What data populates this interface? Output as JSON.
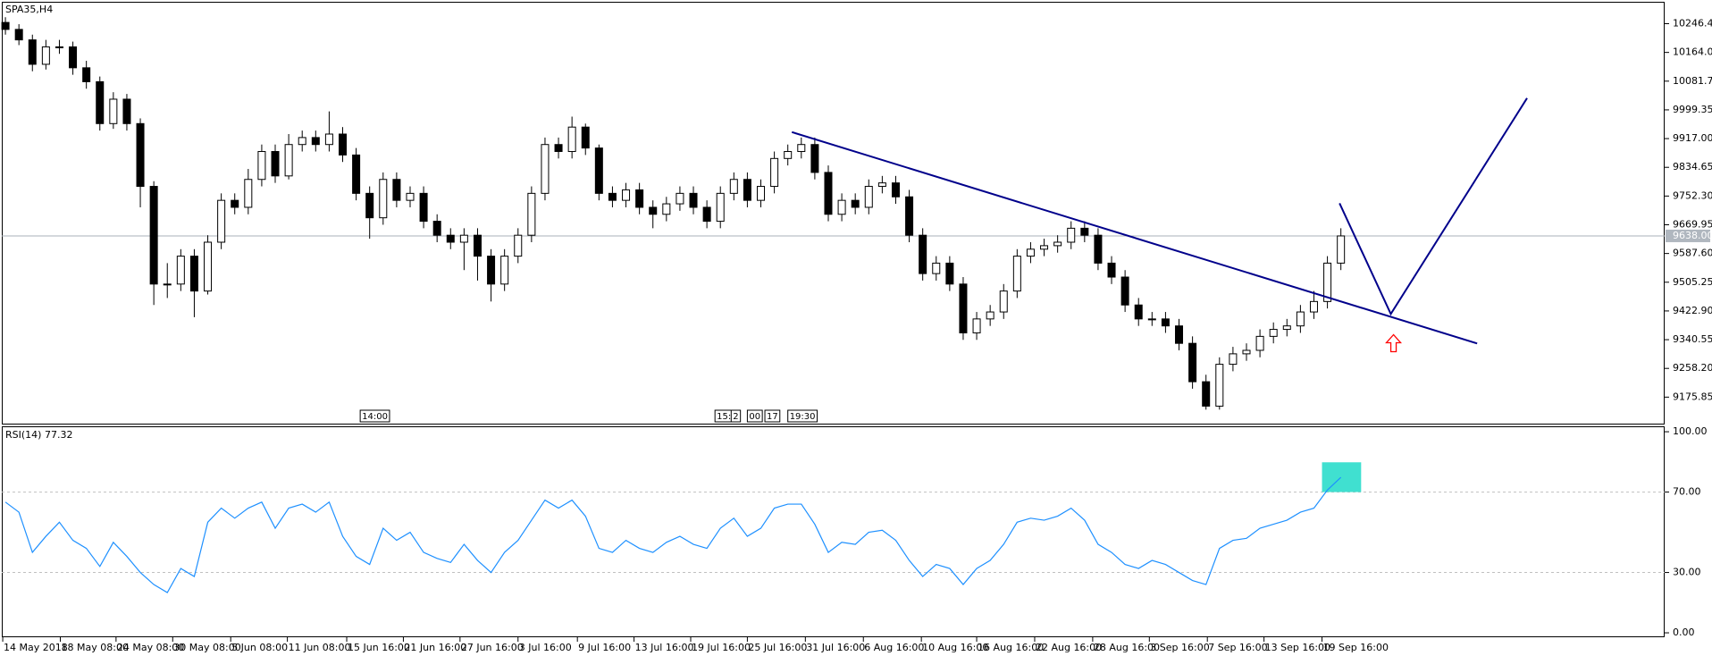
{
  "chart_data": [
    {
      "type": "candlestick",
      "title": "SPA35,H4",
      "xlim": [
        -0.27,
        123
      ],
      "ylim": [
        9097.3,
        10309.2
      ],
      "xticks": [
        {
          "value": -0.2,
          "label": "14 May 2018"
        },
        {
          "value": 4.07,
          "label": "18 May 08:00"
        },
        {
          "value": 8.2,
          "label": "24 May 08:00"
        },
        {
          "value": 12.4,
          "label": "30 May 08:00"
        },
        {
          "value": 16.7,
          "label": "5 Jun 08:00"
        },
        {
          "value": 20.9,
          "label": "11 Jun 08:00"
        },
        {
          "value": 25.3,
          "label": "15 Jun 16:00"
        },
        {
          "value": 29.5,
          "label": "21 Jun 16:00"
        },
        {
          "value": 33.7,
          "label": "27 Jun 16:00"
        },
        {
          "value": 38,
          "label": "3 Jul 16:00"
        },
        {
          "value": 42.4,
          "label": "9 Jul 16:00"
        },
        {
          "value": 46.6,
          "label": "13 Jul 16:00"
        },
        {
          "value": 50.8,
          "label": "19 Jul 16:00"
        },
        {
          "value": 55,
          "label": "25 Jul 16:00"
        },
        {
          "value": 59.3,
          "label": "31 Jul 16:00"
        },
        {
          "value": 63.6,
          "label": "6 Aug 16:00"
        },
        {
          "value": 67.9,
          "label": "10 Aug 16:00"
        },
        {
          "value": 72,
          "label": "16 Aug 16:00"
        },
        {
          "value": 76.3,
          "label": "22 Aug 16:00"
        },
        {
          "value": 80.6,
          "label": "28 Aug 16:00"
        },
        {
          "value": 84.8,
          "label": "3 Sep 16:00"
        },
        {
          "value": 89.1,
          "label": "7 Sep 16:00"
        },
        {
          "value": 93.3,
          "label": "13 Sep 16:00"
        },
        {
          "value": 97.6,
          "label": "19 Sep 16:00"
        }
      ],
      "yticks": [
        {
          "value": 10246.4,
          "label": "10246.40"
        },
        {
          "value": 10164.05,
          "label": "10164.05"
        },
        {
          "value": 10081.7,
          "label": "10081.70"
        },
        {
          "value": 9999.35,
          "label": "9999.35"
        },
        {
          "value": 9917,
          "label": "9917.00"
        },
        {
          "value": 9834.65,
          "label": "9834.65"
        },
        {
          "value": 9752.3,
          "label": "9752.30"
        },
        {
          "value": 9669.95,
          "label": "9669.95"
        },
        {
          "value": 9587.6,
          "label": "9587.60"
        },
        {
          "value": 9505.25,
          "label": "9505.25"
        },
        {
          "value": 9422.9,
          "label": "9422.90"
        },
        {
          "value": 9340.55,
          "label": "9340.55"
        },
        {
          "value": 9258.2,
          "label": "9258.20"
        },
        {
          "value": 9175.85,
          "label": "9175.85"
        }
      ],
      "last_price": {
        "value": 9638,
        "label": "9638.00"
      },
      "up_color": "#ffffff",
      "down_color": "#000000",
      "outline_color": "#000000",
      "open": [
        10250,
        10230,
        10200,
        10130,
        10180,
        10180,
        10120,
        10080,
        9960,
        10030,
        9960,
        9780,
        9500,
        9500,
        9580,
        9480,
        9620,
        9740,
        9720,
        9800,
        9880,
        9810,
        9900,
        9920,
        9900,
        9930,
        9870,
        9760,
        9690,
        9800,
        9740,
        9760,
        9680,
        9640,
        9620,
        9640,
        9580,
        9500,
        9580,
        9640,
        9760,
        9900,
        9880,
        9950,
        9890,
        9760,
        9740,
        9770,
        9720,
        9700,
        9730,
        9760,
        9720,
        9680,
        9760,
        9800,
        9740,
        9780,
        9860,
        9880,
        9900,
        9820,
        9700,
        9740,
        9720,
        9780,
        9790,
        9750,
        9640,
        9530,
        9560,
        9500,
        9360,
        9400,
        9420,
        9480,
        9580,
        9600,
        9610,
        9620,
        9660,
        9640,
        9560,
        9520,
        9440,
        9400,
        9400,
        9380,
        9330,
        9220,
        9150,
        9270,
        9300,
        9310,
        9350,
        9370,
        9380,
        9420,
        9450,
        9560
      ],
      "high": [
        10265,
        10245,
        10215,
        10200,
        10200,
        10195,
        10140,
        10095,
        10050,
        10045,
        9975,
        9795,
        9560,
        9600,
        9600,
        9640,
        9760,
        9760,
        9830,
        9900,
        9900,
        9930,
        9940,
        9940,
        9995,
        9950,
        9890,
        9780,
        9820,
        9820,
        9780,
        9780,
        9700,
        9660,
        9660,
        9660,
        9600,
        9600,
        9660,
        9780,
        9920,
        9920,
        9980,
        9960,
        9900,
        9780,
        9790,
        9790,
        9740,
        9750,
        9780,
        9780,
        9740,
        9780,
        9820,
        9820,
        9800,
        9880,
        9900,
        9920,
        9920,
        9840,
        9760,
        9760,
        9800,
        9810,
        9810,
        9770,
        9660,
        9580,
        9580,
        9520,
        9420,
        9440,
        9500,
        9600,
        9620,
        9630,
        9640,
        9680,
        9680,
        9660,
        9580,
        9540,
        9460,
        9420,
        9420,
        9400,
        9350,
        9240,
        9290,
        9320,
        9330,
        9370,
        9390,
        9400,
        9440,
        9480,
        9580,
        9660
      ],
      "low": [
        10215,
        10185,
        10110,
        10115,
        10160,
        10100,
        10060,
        9940,
        9945,
        9940,
        9720,
        9440,
        9460,
        9480,
        9405,
        9470,
        9600,
        9700,
        9700,
        9780,
        9790,
        9800,
        9880,
        9880,
        9880,
        9850,
        9740,
        9630,
        9670,
        9720,
        9720,
        9660,
        9620,
        9600,
        9540,
        9510,
        9450,
        9480,
        9560,
        9620,
        9740,
        9860,
        9860,
        9870,
        9740,
        9720,
        9720,
        9700,
        9660,
        9680,
        9710,
        9700,
        9660,
        9660,
        9740,
        9720,
        9720,
        9760,
        9840,
        9860,
        9800,
        9680,
        9680,
        9700,
        9700,
        9760,
        9730,
        9620,
        9510,
        9510,
        9480,
        9340,
        9340,
        9380,
        9400,
        9460,
        9560,
        9580,
        9590,
        9600,
        9620,
        9540,
        9500,
        9420,
        9380,
        9380,
        9360,
        9310,
        9200,
        9140,
        9140,
        9250,
        9280,
        9290,
        9330,
        9350,
        9360,
        9400,
        9430,
        9540
      ],
      "close": [
        10230,
        10200,
        10130,
        10180,
        10180,
        10120,
        10080,
        9960,
        10030,
        9960,
        9780,
        9500,
        9500,
        9580,
        9480,
        9620,
        9740,
        9720,
        9800,
        9880,
        9810,
        9900,
        9920,
        9900,
        9930,
        9870,
        9760,
        9690,
        9800,
        9740,
        9760,
        9680,
        9640,
        9620,
        9640,
        9580,
        9500,
        9580,
        9640,
        9760,
        9900,
        9880,
        9950,
        9890,
        9760,
        9740,
        9770,
        9720,
        9700,
        9730,
        9760,
        9720,
        9680,
        9760,
        9800,
        9740,
        9780,
        9860,
        9880,
        9900,
        9820,
        9700,
        9740,
        9720,
        9780,
        9790,
        9750,
        9640,
        9530,
        9560,
        9500,
        9360,
        9400,
        9420,
        9480,
        9580,
        9600,
        9610,
        9620,
        9660,
        9640,
        9560,
        9520,
        9440,
        9400,
        9400,
        9380,
        9330,
        9220,
        9150,
        9270,
        9300,
        9310,
        9350,
        9370,
        9380,
        9420,
        9450,
        9560,
        9638
      ],
      "time_markers": [
        {
          "x": 26.3,
          "label": "14:00"
        },
        {
          "x": 52.6,
          "label": "15:"
        },
        {
          "x": 53.8,
          "label": "2"
        },
        {
          "x": 55,
          "label": "00"
        },
        {
          "x": 56.3,
          "label": "17"
        },
        {
          "x": 58,
          "label": "19:30"
        }
      ],
      "trendline": {
        "color": "#00008b",
        "x": [
          58.3,
          109.1
        ],
        "y": [
          9935.6,
          9329.7
        ]
      },
      "projection": {
        "color": "#00008b",
        "x": [
          98.9,
          102.7,
          112.8
        ],
        "y": [
          9731.5,
          9414.4,
          10032.9
        ]
      },
      "arrow": {
        "color": "#ff0000",
        "x": 102.9,
        "y": 9354.8
      }
    },
    {
      "type": "line",
      "title": "RSI(14) 77.32",
      "xlim": [
        -0.27,
        123
      ],
      "ylim": [
        -2.2,
        102.7
      ],
      "yticks": [
        {
          "value": 100,
          "label": "100.00"
        },
        {
          "value": 70,
          "label": "70.00"
        },
        {
          "value": 30,
          "label": "30.00"
        },
        {
          "value": 0,
          "label": "0.00"
        }
      ],
      "levels": [
        70,
        30
      ],
      "color": "#1e90ff",
      "values": [
        65,
        60,
        40,
        48,
        55,
        46,
        42,
        33,
        45,
        38,
        30,
        24,
        20,
        32,
        28,
        55,
        62,
        57,
        62,
        65,
        52,
        62,
        64,
        60,
        65,
        48,
        38,
        34,
        52,
        46,
        50,
        40,
        37,
        35,
        44,
        36,
        30,
        40,
        46,
        56,
        66,
        62,
        66,
        58,
        42,
        40,
        46,
        42,
        40,
        45,
        48,
        44,
        42,
        52,
        57,
        48,
        52,
        62,
        64,
        64,
        54,
        40,
        45,
        44,
        50,
        51,
        46,
        36,
        28,
        34,
        32,
        24,
        32,
        36,
        44,
        55,
        57,
        56,
        58,
        62,
        56,
        44,
        40,
        34,
        32,
        36,
        34,
        30,
        26,
        24,
        42,
        46,
        47,
        52,
        54,
        56,
        60,
        62,
        71,
        77.32
      ],
      "highlight": {
        "color": "#40e0d0",
        "x": [
          97.6,
          100.5
        ],
        "y": [
          70,
          84.8
        ]
      }
    }
  ]
}
